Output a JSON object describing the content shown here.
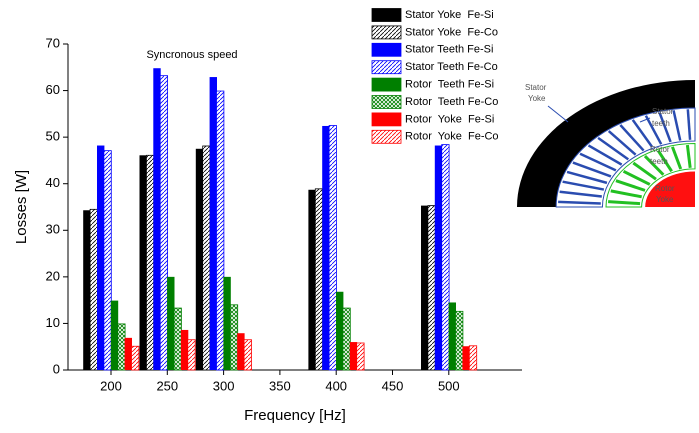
{
  "chart_data": {
    "type": "bar",
    "x_label": "Frequency [Hz]",
    "y_label": "Losses [W]",
    "annotation": "Syncronous speed",
    "categories": [
      "200",
      "250",
      "300",
      "350",
      "400",
      "450",
      "500"
    ],
    "ylim": [
      0,
      70
    ],
    "yticks": [
      0,
      10,
      20,
      30,
      40,
      50,
      60,
      70
    ],
    "legend": "top-right",
    "series": [
      {
        "name": "Stator Yoke  Fe-Si",
        "color": "#000000",
        "pattern": "solid",
        "values": [
          34.3,
          46.1,
          47.5,
          null,
          38.7,
          null,
          35.3
        ]
      },
      {
        "name": "Stator Yoke  Fe-Co",
        "color": "#000000",
        "pattern": "hatch",
        "values": [
          34.5,
          46.1,
          48.1,
          null,
          38.9,
          null,
          35.3
        ]
      },
      {
        "name": "Stator Teeth Fe-Si",
        "color": "#0000ff",
        "pattern": "solid",
        "values": [
          48.2,
          64.8,
          62.9,
          null,
          52.4,
          null,
          48.2
        ]
      },
      {
        "name": "Stator Teeth Fe-Co",
        "color": "#0000ff",
        "pattern": "hatch",
        "values": [
          47.1,
          63.2,
          59.9,
          null,
          52.5,
          null,
          48.4
        ]
      },
      {
        "name": "Rotor  Teeth Fe-Si",
        "color": "#007f00",
        "pattern": "solid",
        "values": [
          14.9,
          20.0,
          20.0,
          null,
          16.8,
          null,
          14.5
        ]
      },
      {
        "name": "Rotor  Teeth Fe-Co",
        "color": "#007f00",
        "pattern": "crosshatch",
        "values": [
          9.9,
          13.3,
          14.0,
          null,
          13.3,
          null,
          12.6
        ]
      },
      {
        "name": "Rotor  Yoke  Fe-Si",
        "color": "#ff0000",
        "pattern": "solid",
        "values": [
          6.9,
          8.6,
          7.9,
          null,
          6.0,
          null,
          5.1
        ]
      },
      {
        "name": "Rotor  Yoke  Fe-Co",
        "color": "#ff0000",
        "pattern": "hatch",
        "values": [
          5.1,
          6.5,
          6.5,
          null,
          5.8,
          null,
          5.2
        ]
      }
    ]
  },
  "inset": {
    "labels": [
      [
        "Stator",
        "Yoke"
      ],
      [
        "Stator",
        "teeth"
      ],
      [
        "Rotor",
        "teeth"
      ],
      [
        "Rotor",
        "Yoke"
      ]
    ]
  }
}
